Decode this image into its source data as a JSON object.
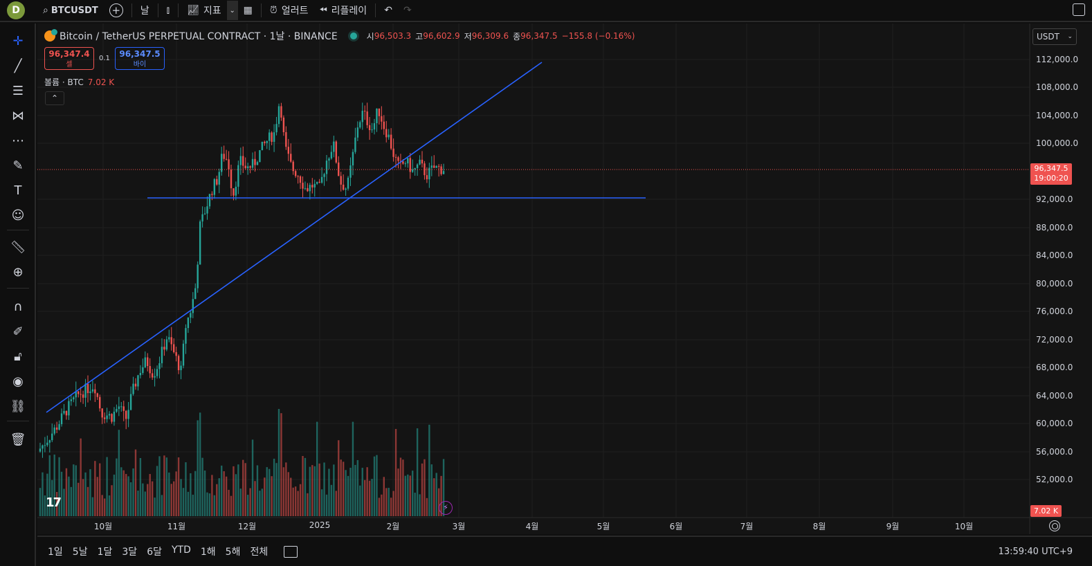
{
  "toolbar": {
    "avatar_letter": "D",
    "symbol": "BTCUSDT",
    "interval": "날",
    "indicators_label": "지표",
    "alert_label": "얼러트",
    "replay_label": "리플레이"
  },
  "legend": {
    "title": "Bitcoin / TetherUS PERPETUAL CONTRACT · 1날 · BINANCE",
    "open_key": "시",
    "open_val": "96,503.3",
    "high_key": "고",
    "high_val": "96,602.9",
    "low_key": "저",
    "low_val": "96,309.6",
    "close_key": "종",
    "close_val": "96,347.5",
    "change": "−155.8 (−0.16%)"
  },
  "trade": {
    "sell_price": "96,347.4",
    "sell_label": "셀",
    "spread": "0.1",
    "buy_price": "96,347.5",
    "buy_label": "바이"
  },
  "volume_legend": {
    "label": "볼륨 · BTC",
    "value": "7.02 K"
  },
  "price_axis": {
    "currency": "USDT",
    "labels": [
      "112,000.0",
      "108,000.0",
      "104,000.0",
      "100,000.0",
      "92,000.0",
      "88,000.0",
      "84,000.0",
      "80,000.0",
      "76,000.0",
      "72,000.0",
      "68,000.0",
      "64,000.0",
      "60,000.0",
      "56,000.0",
      "52,000.0"
    ],
    "current_price": "96,347.5",
    "countdown": "19:00:20",
    "volume_tag": "7.02 K"
  },
  "time_axis": {
    "labels": [
      "10월",
      "11월",
      "12월",
      "2025",
      "2월",
      "3월",
      "4월",
      "5월",
      "6월",
      "7월",
      "8월",
      "9월",
      "10월"
    ]
  },
  "ranges": [
    "1일",
    "5날",
    "1달",
    "3달",
    "6달",
    "YTD",
    "1해",
    "5해",
    "전체"
  ],
  "clock": "13:59:40 UTC+9",
  "icons": {
    "left_toolbar": [
      "crosshair-icon",
      "trendline-icon",
      "fib-icon",
      "pattern-icon",
      "forecast-icon",
      "brush-icon",
      "text-icon",
      "emoji-icon",
      "ruler-icon",
      "zoom-in-icon",
      "magnet-icon",
      "lock-draw-icon",
      "lock-icon",
      "eye-icon",
      "link-icon",
      "trash-icon"
    ]
  },
  "colors": {
    "up": "#26a69a",
    "down": "#ef5350",
    "line": "#2962ff",
    "bg": "#141414"
  },
  "chart_data": {
    "type": "candlestick",
    "series_name": "BTCUSDT",
    "y_range": [
      48000,
      114000
    ],
    "x_months": [
      "10월",
      "11월",
      "12월",
      "2025",
      "2월",
      "3월",
      "4월",
      "5월",
      "6월",
      "7월",
      "8월",
      "9월",
      "10월"
    ],
    "trendline_rising": [
      [
        63500,
        "start"
      ],
      [
        111500,
        "end"
      ]
    ],
    "horizontal_level": 92200,
    "last_close": 96347.5
  }
}
